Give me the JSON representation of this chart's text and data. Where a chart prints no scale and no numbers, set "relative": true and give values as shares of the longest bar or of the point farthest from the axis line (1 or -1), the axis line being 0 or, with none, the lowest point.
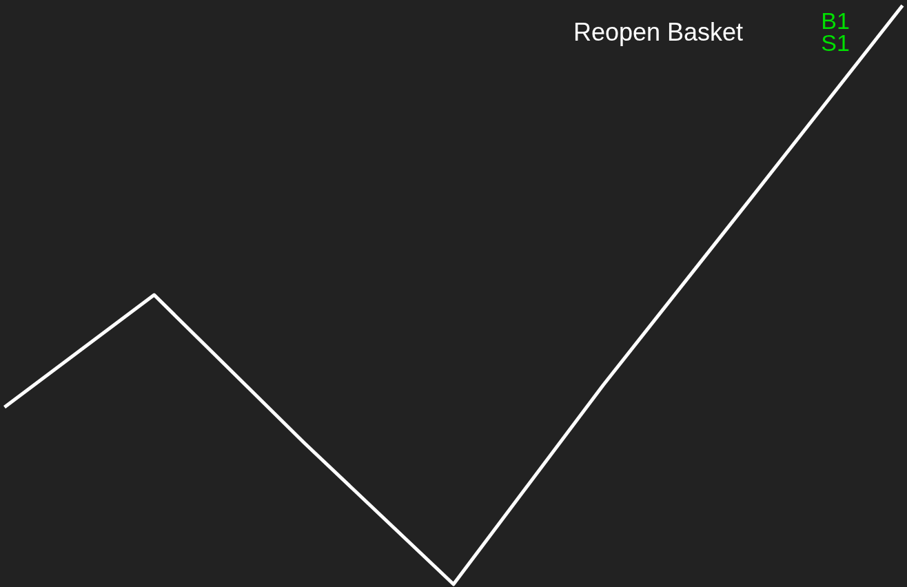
{
  "chart_data": {
    "type": "line",
    "relative": true,
    "categories": [
      null,
      null,
      null,
      null,
      null,
      null,
      null
    ],
    "series": [
      {
        "color": "#ffffff",
        "values": [
          0.306,
          0.5,
          0.245,
          0,
          0.344,
          0.671,
          1
        ]
      }
    ],
    "annotations": [
      "Reopen Basket",
      "B1",
      "S1"
    ],
    "marker": "none",
    "line_style": "solid"
  }
}
